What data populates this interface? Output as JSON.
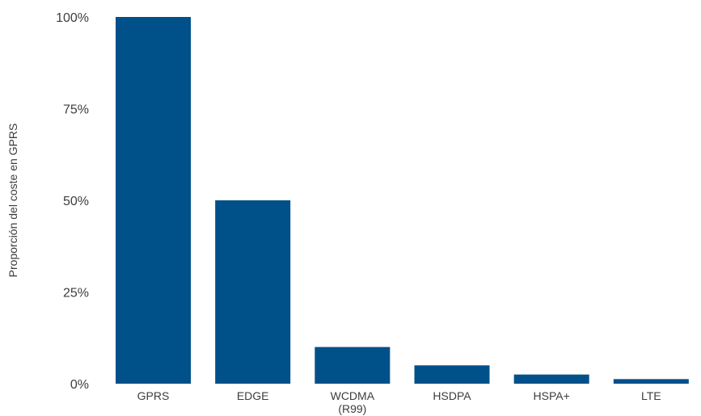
{
  "chart_data": {
    "type": "bar",
    "title": "",
    "xlabel": "",
    "ylabel": "Proporción del coste en GPRS",
    "categories": [
      "GPRS",
      "EDGE",
      "WCDMA (R99)",
      "HSDPA",
      "HSPA+",
      "LTE"
    ],
    "category_label_lines": [
      [
        "GPRS"
      ],
      [
        "EDGE"
      ],
      [
        "WCDMA",
        "(R99)"
      ],
      [
        "HSDPA"
      ],
      [
        "HSPA+"
      ],
      [
        "LTE"
      ]
    ],
    "values": [
      100,
      50,
      10,
      5,
      2.5,
      1.25
    ],
    "ylim": [
      0,
      100
    ],
    "yticks": [
      0,
      25,
      50,
      75,
      100
    ],
    "ytick_labels": [
      "0%",
      "25%",
      "50%",
      "75%",
      "100%"
    ],
    "grid": false,
    "bar_color": "#00508a",
    "text_color": "#3d3d3d"
  }
}
